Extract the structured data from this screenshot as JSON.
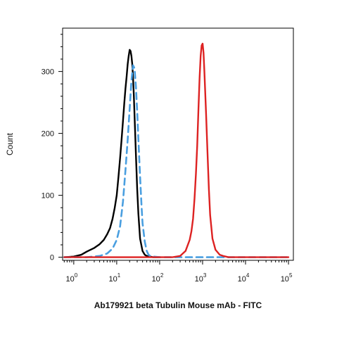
{
  "chart_data": {
    "type": "line",
    "title": "Ab179921 beta Tubulin Mouse mAb - FITC",
    "xlabel": "Ab179921 beta Tubulin Mouse mAb - FITC",
    "ylabel": "Count",
    "x_scale": "log",
    "xlim": [
      0.55,
      130000
    ],
    "ylim": [
      -5,
      370
    ],
    "x_ticks": [
      {
        "base": "10",
        "exp": "0",
        "value": 1
      },
      {
        "base": "10",
        "exp": "1",
        "value": 10
      },
      {
        "base": "10",
        "exp": "2",
        "value": 100
      },
      {
        "base": "10",
        "exp": "3",
        "value": 1000
      },
      {
        "base": "10",
        "exp": "4",
        "value": 10000
      },
      {
        "base": "10",
        "exp": "5",
        "value": 100000
      }
    ],
    "y_ticks": [
      0,
      100,
      200,
      300
    ],
    "grid": false,
    "legend": "none",
    "series": [
      {
        "color": "#000000",
        "style": "solid",
        "x": [
          0.6,
          1,
          1.5,
          2,
          3,
          4,
          5,
          6,
          7,
          8,
          9,
          10,
          11,
          12,
          13,
          14,
          15,
          16,
          17,
          18,
          19,
          20,
          21,
          22,
          23,
          24,
          25,
          26,
          27,
          28,
          30,
          32,
          35,
          40,
          45,
          50,
          60,
          70,
          80,
          100
        ],
        "y": [
          0,
          1,
          4,
          9,
          15,
          21,
          28,
          37,
          47,
          62,
          80,
          100,
          130,
          160,
          190,
          220,
          248,
          272,
          292,
          312,
          325,
          335,
          333,
          325,
          312,
          290,
          262,
          230,
          198,
          165,
          110,
          70,
          30,
          10,
          4,
          2,
          1,
          0,
          0,
          0
        ]
      },
      {
        "color": "#4a9fe0",
        "style": "dashed",
        "x": [
          0.6,
          2,
          4,
          6,
          8,
          10,
          12,
          14,
          16,
          18,
          20,
          22,
          24,
          26,
          28,
          30,
          32,
          35,
          38,
          40,
          45,
          50,
          55,
          60,
          70,
          100,
          1000,
          10000,
          100000
        ],
        "y": [
          0,
          0,
          2,
          6,
          14,
          28,
          50,
          90,
          140,
          190,
          240,
          285,
          310,
          305,
          275,
          235,
          190,
          130,
          80,
          55,
          25,
          10,
          4,
          2,
          1,
          0,
          0,
          0,
          0
        ]
      },
      {
        "color": "#dd2222",
        "style": "solid",
        "x": [
          0.6,
          100,
          200,
          300,
          400,
          500,
          550,
          600,
          650,
          700,
          750,
          800,
          850,
          900,
          950,
          1000,
          1050,
          1100,
          1200,
          1300,
          1400,
          1500,
          1700,
          2000,
          2500,
          3000,
          4000,
          10000,
          100000
        ],
        "y": [
          0,
          0,
          0,
          2,
          10,
          28,
          42,
          62,
          95,
          135,
          180,
          240,
          290,
          325,
          342,
          345,
          330,
          300,
          235,
          170,
          110,
          68,
          30,
          12,
          4,
          2,
          0,
          0,
          0
        ]
      }
    ]
  }
}
